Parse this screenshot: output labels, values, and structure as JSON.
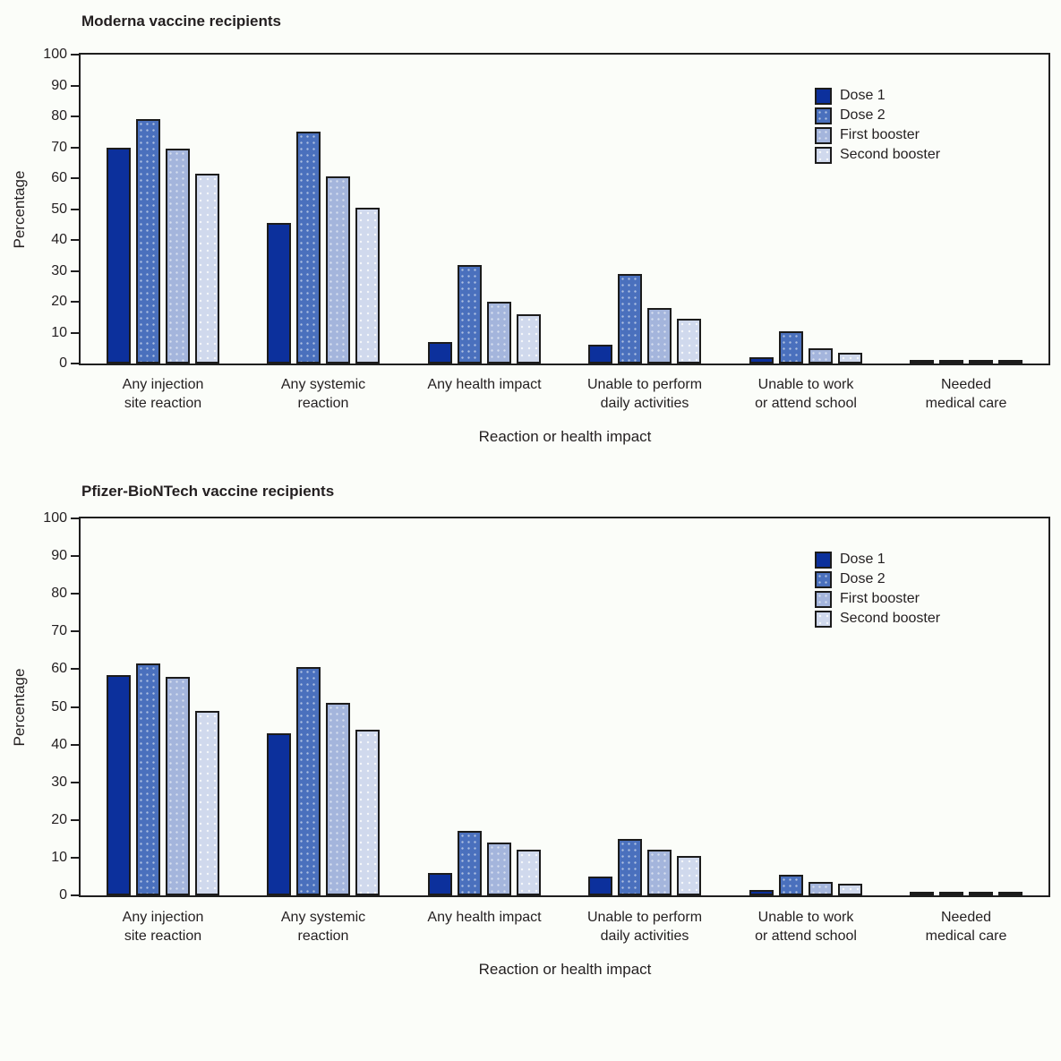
{
  "figure": {
    "background_color": "#fbfdf9",
    "bar_border_color": "#1c1c1c",
    "text_color": "#231f20"
  },
  "chart_data": [
    {
      "type": "bar",
      "title": "Moderna vaccine recipients",
      "xlabel": "Reaction or health impact",
      "ylabel": "Percentage",
      "ylim": [
        0,
        100
      ],
      "yticks": [
        0,
        10,
        20,
        30,
        40,
        50,
        60,
        70,
        80,
        90,
        100
      ],
      "grid": false,
      "legend_position": "inside-top-right",
      "categories": [
        "Any injection\nsite reaction",
        "Any systemic\nreaction",
        "Any health impact",
        "Unable to perform\ndaily activities",
        "Unable to work\nor attend school",
        "Needed\nmedical care"
      ],
      "series": [
        {
          "name": "Dose 1",
          "color": "#0c309c",
          "texture": "none",
          "values": [
            70,
            45.5,
            7,
            6,
            2,
            0.5
          ]
        },
        {
          "name": "Dose 2",
          "color": "#4a70bd",
          "texture": "dots",
          "values": [
            79,
            75,
            32,
            29,
            10.5,
            1
          ]
        },
        {
          "name": "First booster",
          "color": "#a4b5dc",
          "texture": "dots",
          "values": [
            69.5,
            60.5,
            20,
            18,
            5,
            0.8
          ]
        },
        {
          "name": "Second booster",
          "color": "#d0d9ed",
          "texture": "dots-faint",
          "values": [
            61.5,
            50.5,
            16,
            14.5,
            3.5,
            1
          ]
        }
      ]
    },
    {
      "type": "bar",
      "title": "Pfizer-BioNTech vaccine recipients",
      "xlabel": "Reaction or health impact",
      "ylabel": "Percentage",
      "ylim": [
        0,
        100
      ],
      "yticks": [
        0,
        10,
        20,
        30,
        40,
        50,
        60,
        70,
        80,
        90,
        100
      ],
      "grid": false,
      "legend_position": "inside-top-right",
      "categories": [
        "Any injection\nsite reaction",
        "Any systemic\nreaction",
        "Any health impact",
        "Unable to perform\ndaily activities",
        "Unable to work\nor attend school",
        "Needed\nmedical care"
      ],
      "series": [
        {
          "name": "Dose 1",
          "color": "#0c309c",
          "texture": "none",
          "values": [
            58.5,
            43,
            6,
            5,
            1.5,
            0.5
          ]
        },
        {
          "name": "Dose 2",
          "color": "#4a70bd",
          "texture": "dots",
          "values": [
            61.5,
            60.5,
            17,
            15,
            5.5,
            0.7
          ]
        },
        {
          "name": "First booster",
          "color": "#a4b5dc",
          "texture": "dots",
          "values": [
            58,
            51,
            14,
            12,
            3.5,
            0.7
          ]
        },
        {
          "name": "Second booster",
          "color": "#d0d9ed",
          "texture": "dots-faint",
          "values": [
            49,
            44,
            12,
            10.5,
            3,
            1
          ]
        }
      ]
    }
  ]
}
